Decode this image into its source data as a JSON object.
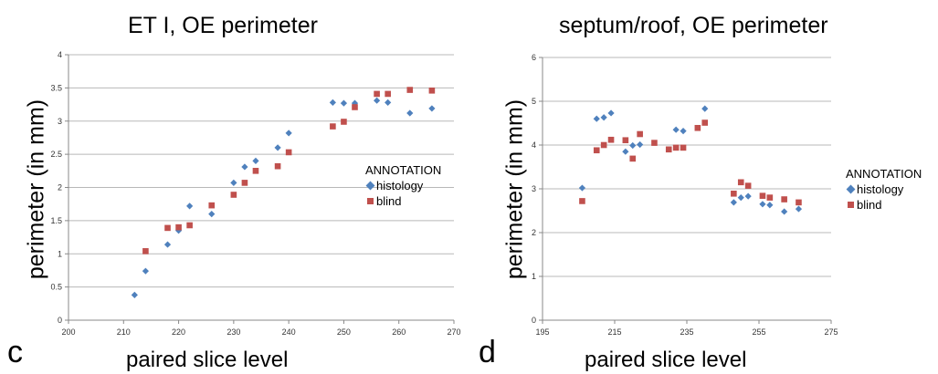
{
  "chart_data": [
    {
      "type": "scatter",
      "panel_label": "c",
      "title": "ET I, OE perimeter",
      "xlabel": "paired slice level",
      "ylabel": "perimeter (in mm)",
      "xlim": [
        200,
        270
      ],
      "ylim": [
        0,
        4
      ],
      "xticks": [
        200,
        210,
        220,
        230,
        240,
        250,
        260,
        270
      ],
      "yticks": [
        0,
        0.5,
        1,
        1.5,
        2,
        2.5,
        3,
        3.5,
        4
      ],
      "grid": "horizontal",
      "legend_title": "ANNOTATION",
      "legend_position": "right",
      "series": [
        {
          "name": "histology",
          "marker": "diamond",
          "color": "#4F81BD",
          "points": [
            [
              212,
              0.38
            ],
            [
              214,
              0.74
            ],
            [
              218,
              1.14
            ],
            [
              220,
              1.35
            ],
            [
              222,
              1.72
            ],
            [
              226,
              1.6
            ],
            [
              230,
              2.07
            ],
            [
              232,
              2.31
            ],
            [
              234,
              2.4
            ],
            [
              238,
              2.6
            ],
            [
              240,
              2.82
            ],
            [
              248,
              3.28
            ],
            [
              250,
              3.27
            ],
            [
              252,
              3.27
            ],
            [
              256,
              3.31
            ],
            [
              258,
              3.28
            ],
            [
              262,
              3.12
            ],
            [
              266,
              3.19
            ]
          ]
        },
        {
          "name": "blind",
          "marker": "square",
          "color": "#C0504D",
          "points": [
            [
              214,
              1.04
            ],
            [
              218,
              1.39
            ],
            [
              220,
              1.4
            ],
            [
              222,
              1.43
            ],
            [
              226,
              1.73
            ],
            [
              230,
              1.89
            ],
            [
              232,
              2.07
            ],
            [
              234,
              2.25
            ],
            [
              238,
              2.32
            ],
            [
              240,
              2.53
            ],
            [
              248,
              2.92
            ],
            [
              250,
              2.99
            ],
            [
              252,
              3.21
            ],
            [
              256,
              3.41
            ],
            [
              258,
              3.41
            ],
            [
              262,
              3.47
            ],
            [
              266,
              3.46
            ]
          ]
        }
      ]
    },
    {
      "type": "scatter",
      "panel_label": "d",
      "title": "septum/roof, OE perimeter",
      "xlabel": "paired slice level",
      "ylabel": "perimeter (in mm)",
      "xlim": [
        195,
        275
      ],
      "ylim": [
        0,
        6
      ],
      "xticks": [
        195,
        215,
        235,
        255,
        275
      ],
      "yticks": [
        0,
        1,
        2,
        3,
        4,
        5,
        6
      ],
      "grid": "horizontal",
      "legend_title": "ANNOTATION",
      "legend_position": "right",
      "series": [
        {
          "name": "histology",
          "marker": "diamond",
          "color": "#4F81BD",
          "points": [
            [
              206,
              3.02
            ],
            [
              210,
              4.6
            ],
            [
              212,
              4.63
            ],
            [
              214,
              4.73
            ],
            [
              218,
              3.85
            ],
            [
              220,
              3.99
            ],
            [
              222,
              4.01
            ],
            [
              232,
              4.35
            ],
            [
              234,
              4.32
            ],
            [
              240,
              4.83
            ],
            [
              248,
              2.69
            ],
            [
              250,
              2.8
            ],
            [
              252,
              2.83
            ],
            [
              256,
              2.65
            ],
            [
              258,
              2.63
            ],
            [
              262,
              2.48
            ],
            [
              266,
              2.54
            ]
          ]
        },
        {
          "name": "blind",
          "marker": "square",
          "color": "#C0504D",
          "points": [
            [
              206,
              2.72
            ],
            [
              210,
              3.88
            ],
            [
              212,
              4.0
            ],
            [
              214,
              4.12
            ],
            [
              218,
              4.11
            ],
            [
              220,
              3.69
            ],
            [
              222,
              4.25
            ],
            [
              226,
              4.05
            ],
            [
              230,
              3.9
            ],
            [
              232,
              3.94
            ],
            [
              234,
              3.94
            ],
            [
              238,
              4.39
            ],
            [
              240,
              4.51
            ],
            [
              248,
              2.89
            ],
            [
              250,
              3.15
            ],
            [
              252,
              3.07
            ],
            [
              256,
              2.84
            ],
            [
              258,
              2.8
            ],
            [
              262,
              2.76
            ],
            [
              266,
              2.69
            ]
          ]
        }
      ]
    }
  ]
}
